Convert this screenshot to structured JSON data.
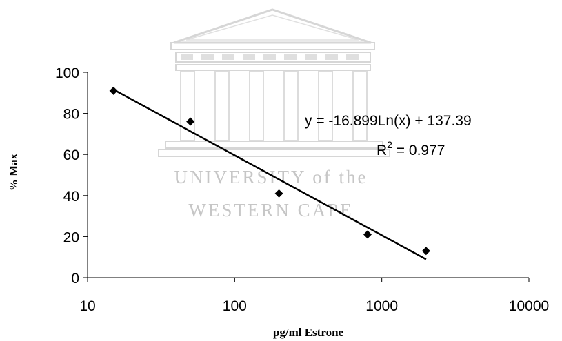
{
  "chart_data": {
    "type": "scatter",
    "title": "",
    "xlabel": "pg/ml Estrone",
    "ylabel": "% Max",
    "xscale": "log",
    "xlim": [
      10,
      10000
    ],
    "ylim": [
      0,
      100
    ],
    "x_ticks": [
      "10",
      "100",
      "1000",
      "10000"
    ],
    "y_ticks": [
      "0",
      "20",
      "40",
      "60",
      "80",
      "100"
    ],
    "grid": false,
    "legend": "none",
    "points": [
      {
        "x": 15,
        "y": 91
      },
      {
        "x": 50,
        "y": 76
      },
      {
        "x": 200,
        "y": 41
      },
      {
        "x": 800,
        "y": 21
      },
      {
        "x": 2000,
        "y": 13
      }
    ],
    "trendline": {
      "type": "logarithmic",
      "slope": -16.899,
      "intercept": 137.39,
      "x_range": [
        15,
        2000
      ],
      "equation_label": "y = -16.899Ln(x) + 137.39",
      "r2_prefix": "R",
      "r2_exponent": "2",
      "r2_suffix": " = 0.977"
    },
    "colors": {
      "marker": "#000000",
      "line": "#000000"
    }
  },
  "watermark": {
    "line1": "UNIVERSITY of the",
    "line2": "WESTERN CAPE",
    "color": "#c6c6c6"
  }
}
